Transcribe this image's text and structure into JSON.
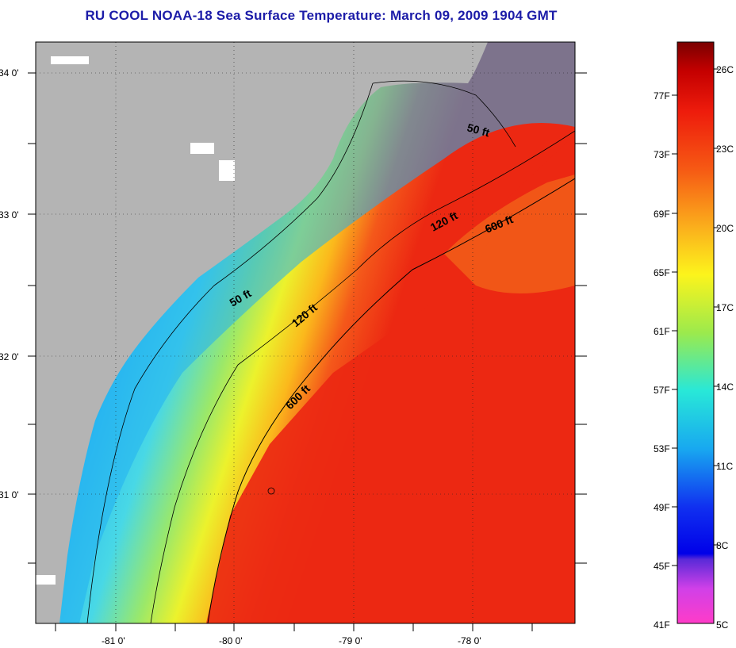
{
  "title": "RU COOL  NOAA-18  Sea Surface Temperature:  March 09, 2009 1904 GMT",
  "map": {
    "lat_labels": [
      "34 0'",
      "33 0'",
      "32 0'",
      "31 0'"
    ],
    "lon_labels": [
      "-81 0'",
      "-80 0'",
      "-79 0'",
      "-78 0'"
    ],
    "contour_labels": [
      "50 ft",
      "120 ft",
      "600 ft",
      "50 ft",
      "120 ft",
      "600 ft"
    ],
    "colors": {
      "land": "#b4b4b4",
      "cool": "#1fb4ee",
      "warm": "#ee2a10"
    }
  },
  "colorbar": {
    "fahrenheit_labels": [
      "77F",
      "73F",
      "69F",
      "65F",
      "61F",
      "57F",
      "53F",
      "49F",
      "45F",
      "41F"
    ],
    "celsius_labels": [
      "26C",
      "23C",
      "20C",
      "17C",
      "14C",
      "11C",
      "8C",
      "5C"
    ]
  }
}
